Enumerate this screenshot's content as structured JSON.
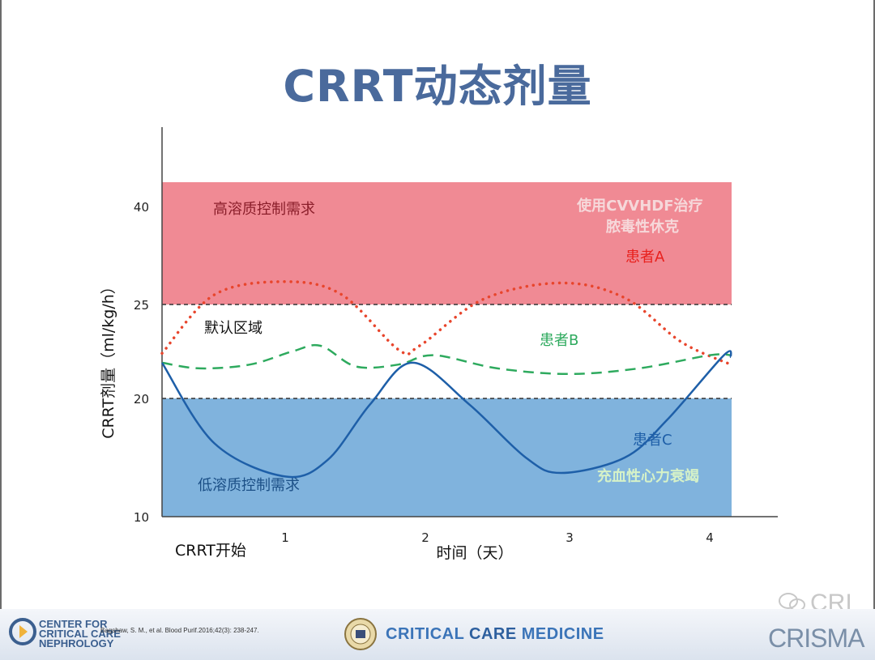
{
  "title": "CRRT动态剂量",
  "chart_data": {
    "type": "line",
    "title": "CRRT动态剂量",
    "xlabel": "时间（天）",
    "ylabel": "CRRT剂量（ml/kg/h）",
    "x_ticks": [
      "1",
      "2",
      "3",
      "4"
    ],
    "x_start_label": "CRRT开始",
    "y_ticks": [
      10,
      20,
      25,
      40
    ],
    "xlim": [
      0.13,
      4.6
    ],
    "bands": [
      {
        "label": "高溶质控制需求",
        "sublabel": "使用CVVHDF治疗\n脓毒性休克",
        "color": "#f08a94"
      },
      {
        "label": "默认区域",
        "color": "#ffffff"
      },
      {
        "label": "低溶质控制需求",
        "sublabel": "充血性心力衰竭",
        "color": "#80b3dd"
      }
    ],
    "series": [
      {
        "name": "患者A",
        "style": "dotted",
        "color": "#e8452c",
        "points": [
          [
            0.0,
            22.4
          ],
          [
            0.5,
            26.5
          ],
          [
            1.0,
            28.5
          ],
          [
            1.4,
            26.5
          ],
          [
            1.8,
            22.6
          ],
          [
            1.95,
            22.8
          ],
          [
            2.4,
            25.8
          ],
          [
            2.95,
            28.3
          ],
          [
            3.4,
            26.0
          ],
          [
            3.8,
            23.0
          ],
          [
            4.15,
            21.8
          ]
        ]
      },
      {
        "name": "患者B",
        "style": "dashed",
        "color": "#2eaa5e",
        "points": [
          [
            0.0,
            21.9
          ],
          [
            0.4,
            21.6
          ],
          [
            0.75,
            21.8
          ],
          [
            1.05,
            22.5
          ],
          [
            1.25,
            22.8
          ],
          [
            1.5,
            21.7
          ],
          [
            1.8,
            21.8
          ],
          [
            2.05,
            22.3
          ],
          [
            2.5,
            21.6
          ],
          [
            3.0,
            21.3
          ],
          [
            3.5,
            21.6
          ],
          [
            4.0,
            22.3
          ],
          [
            4.15,
            22.3
          ]
        ]
      },
      {
        "name": "患者C",
        "style": "solid",
        "color": "#1e5fa8",
        "points": [
          [
            0.0,
            21.9
          ],
          [
            0.5,
            16.2
          ],
          [
            1.0,
            13.4
          ],
          [
            1.3,
            14.8
          ],
          [
            1.6,
            19.5
          ],
          [
            1.9,
            21.9
          ],
          [
            2.3,
            19.5
          ],
          [
            2.7,
            15.0
          ],
          [
            2.95,
            13.7
          ],
          [
            3.4,
            15.0
          ],
          [
            3.7,
            18.2
          ],
          [
            4.1,
            22.3
          ],
          [
            4.15,
            22.2
          ]
        ]
      }
    ]
  },
  "footer": {
    "ccn_line1": "CENTER FOR",
    "ccn_line2": "CRITICAL CARE",
    "ccn_line3": "NEPHROLOGY",
    "citation": "Bagshaw, S. M., et al. Blood Purif.2016;42(3): 238-247.",
    "ccm_part1": "CRITICAL ",
    "ccm_part2": "CARE",
    "ccm_part3": " MEDICINE",
    "crisma": "CRISMA",
    "watermark": "CRI"
  }
}
